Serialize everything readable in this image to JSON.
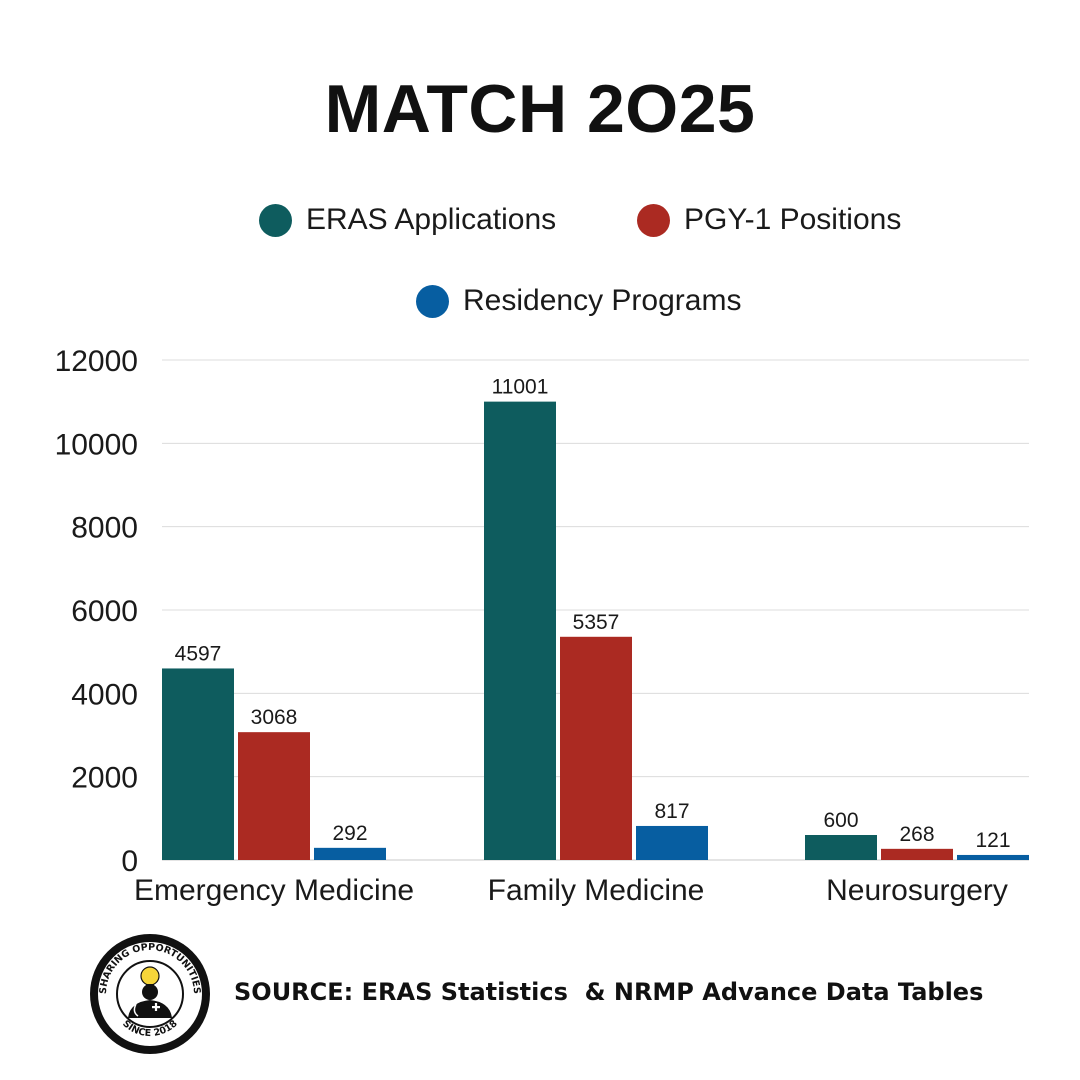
{
  "title": "MATCH 2O25",
  "legend": {
    "items": [
      {
        "label": "ERAS Applications",
        "color": "#0e5c5e"
      },
      {
        "label": "PGY-1 Positions",
        "color": "#ab2a22"
      },
      {
        "label": "Residency Programs",
        "color": "#075ea1"
      }
    ]
  },
  "chart_data": {
    "type": "bar",
    "categories": [
      "Emergency Medicine",
      "Family Medicine",
      "Neurosurgery"
    ],
    "series": [
      {
        "name": "ERAS Applications",
        "color": "#0e5c5e",
        "values": [
          4597,
          11001,
          600
        ]
      },
      {
        "name": "PGY-1 Positions",
        "color": "#ab2a22",
        "values": [
          3068,
          5357,
          268
        ]
      },
      {
        "name": "Residency Programs",
        "color": "#075ea1",
        "values": [
          292,
          817,
          121
        ]
      }
    ],
    "ylim": [
      0,
      12000
    ],
    "yticks": [
      0,
      2000,
      4000,
      6000,
      8000,
      10000,
      12000
    ],
    "grid": true,
    "legend_position": "top",
    "data_labels": true
  },
  "footer": {
    "source": "SOURCE: ERAS Statistics  & NRMP Advance Data Tables",
    "logo": {
      "top_text": "SHARING OPPORTUNITIES",
      "bottom_text": "SINCE 2018",
      "icon": "doctor-lightbulb-icon"
    }
  }
}
